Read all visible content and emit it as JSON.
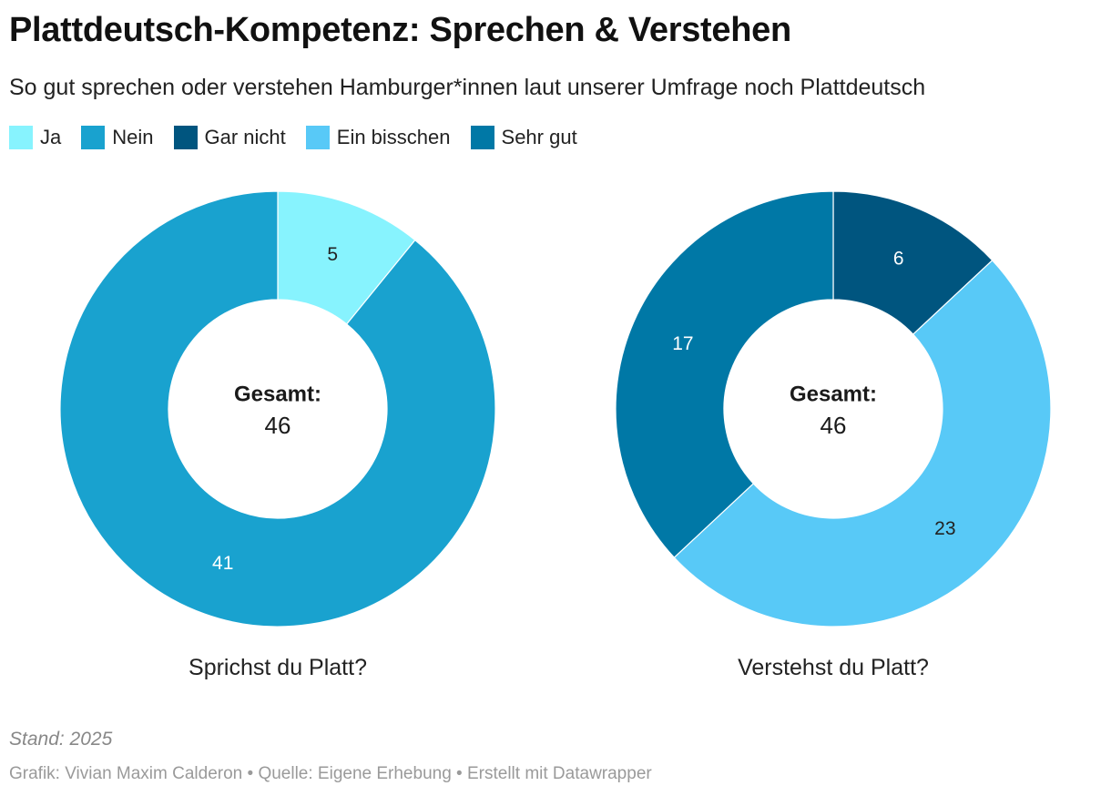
{
  "header": {
    "title": "Plattdeutsch-Kompetenz: Sprechen & Verstehen",
    "subtitle": "So gut sprechen oder verstehen Hamburger*innen laut unserer Umfrage noch Plattdeutsch"
  },
  "legend": [
    {
      "label": "Ja",
      "color": "#87f3fe"
    },
    {
      "label": "Nein",
      "color": "#19a2cf"
    },
    {
      "label": "Gar nicht",
      "color": "#00557f"
    },
    {
      "label": "Ein bisschen",
      "color": "#58c9f7"
    },
    {
      "label": "Sehr gut",
      "color": "#0078a6"
    }
  ],
  "chart_data": [
    {
      "type": "pie",
      "variant": "donut",
      "title": "Sprichst du Platt?",
      "center_label": "Gesamt:",
      "center_value": "46",
      "slices": [
        {
          "label": "Ja",
          "value": 5,
          "color": "#87f3fe",
          "text_color": "#222222"
        },
        {
          "label": "Nein",
          "value": 41,
          "color": "#19a2cf",
          "text_color": "#ffffff"
        }
      ]
    },
    {
      "type": "pie",
      "variant": "donut",
      "title": "Verstehst du Platt?",
      "center_label": "Gesamt:",
      "center_value": "46",
      "slices": [
        {
          "label": "Gar nicht",
          "value": 6,
          "color": "#00557f",
          "text_color": "#ffffff"
        },
        {
          "label": "Ein bisschen",
          "value": 23,
          "color": "#58c9f7",
          "text_color": "#222222"
        },
        {
          "label": "Sehr gut",
          "value": 17,
          "color": "#0078a6",
          "text_color": "#ffffff"
        }
      ]
    }
  ],
  "footer": {
    "stand": "Stand: 2025",
    "source": "Grafik: Vivian Maxim Calderon • Quelle: Eigene Erhebung • Erstellt mit Datawrapper"
  }
}
